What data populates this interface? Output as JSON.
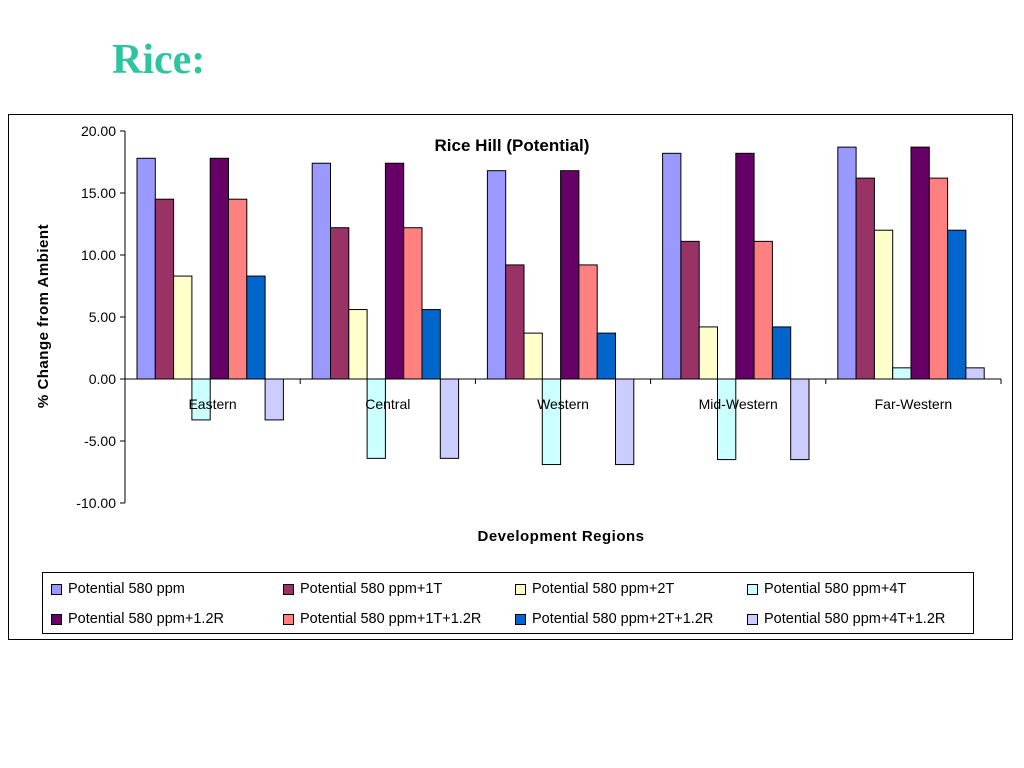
{
  "slide": {
    "title": "Rice:"
  },
  "chart_data": {
    "type": "bar",
    "title": "Rice Hill (Potential)",
    "xlabel": "Development Regions",
    "ylabel": "% Change from Ambient",
    "ylim": [
      -10,
      20
    ],
    "yticks": [
      "20.00",
      "15.00",
      "10.00",
      "5.00",
      "0.00",
      "-5.00",
      "-10.00"
    ],
    "ytick_values": [
      20,
      15,
      10,
      5,
      0,
      -5,
      -10
    ],
    "categories": [
      "Eastern",
      "Central",
      "Western",
      "Mid-Western",
      "Far-Western"
    ],
    "legend_position": "bottom",
    "grid": false,
    "series": [
      {
        "name": "Potential 580 ppm",
        "color": "#9999ff",
        "values": [
          17.8,
          17.4,
          16.8,
          18.2,
          18.7
        ]
      },
      {
        "name": "Potential 580 ppm+1T",
        "color": "#993366",
        "values": [
          14.5,
          12.2,
          9.2,
          11.1,
          16.2
        ]
      },
      {
        "name": "Potential 580 ppm+2T",
        "color": "#ffffcc",
        "values": [
          8.3,
          5.6,
          3.7,
          4.2,
          12.0
        ]
      },
      {
        "name": "Potential 580 ppm+4T",
        "color": "#ccffff",
        "values": [
          -3.3,
          -6.4,
          -6.9,
          -6.5,
          0.9
        ]
      },
      {
        "name": "Potential 580 ppm+1.2R",
        "color": "#660066",
        "values": [
          17.8,
          17.4,
          16.8,
          18.2,
          18.7
        ]
      },
      {
        "name": "Potential 580 ppm+1T+1.2R",
        "color": "#ff8080",
        "values": [
          14.5,
          12.2,
          9.2,
          11.1,
          16.2
        ]
      },
      {
        "name": "Potential 580 ppm+2T+1.2R",
        "color": "#0066cc",
        "values": [
          8.3,
          5.6,
          3.7,
          4.2,
          12.0
        ]
      },
      {
        "name": "Potential 580 ppm+4T+1.2R",
        "color": "#ccccff",
        "values": [
          -3.3,
          -6.4,
          -6.9,
          -6.5,
          0.9
        ]
      }
    ]
  }
}
